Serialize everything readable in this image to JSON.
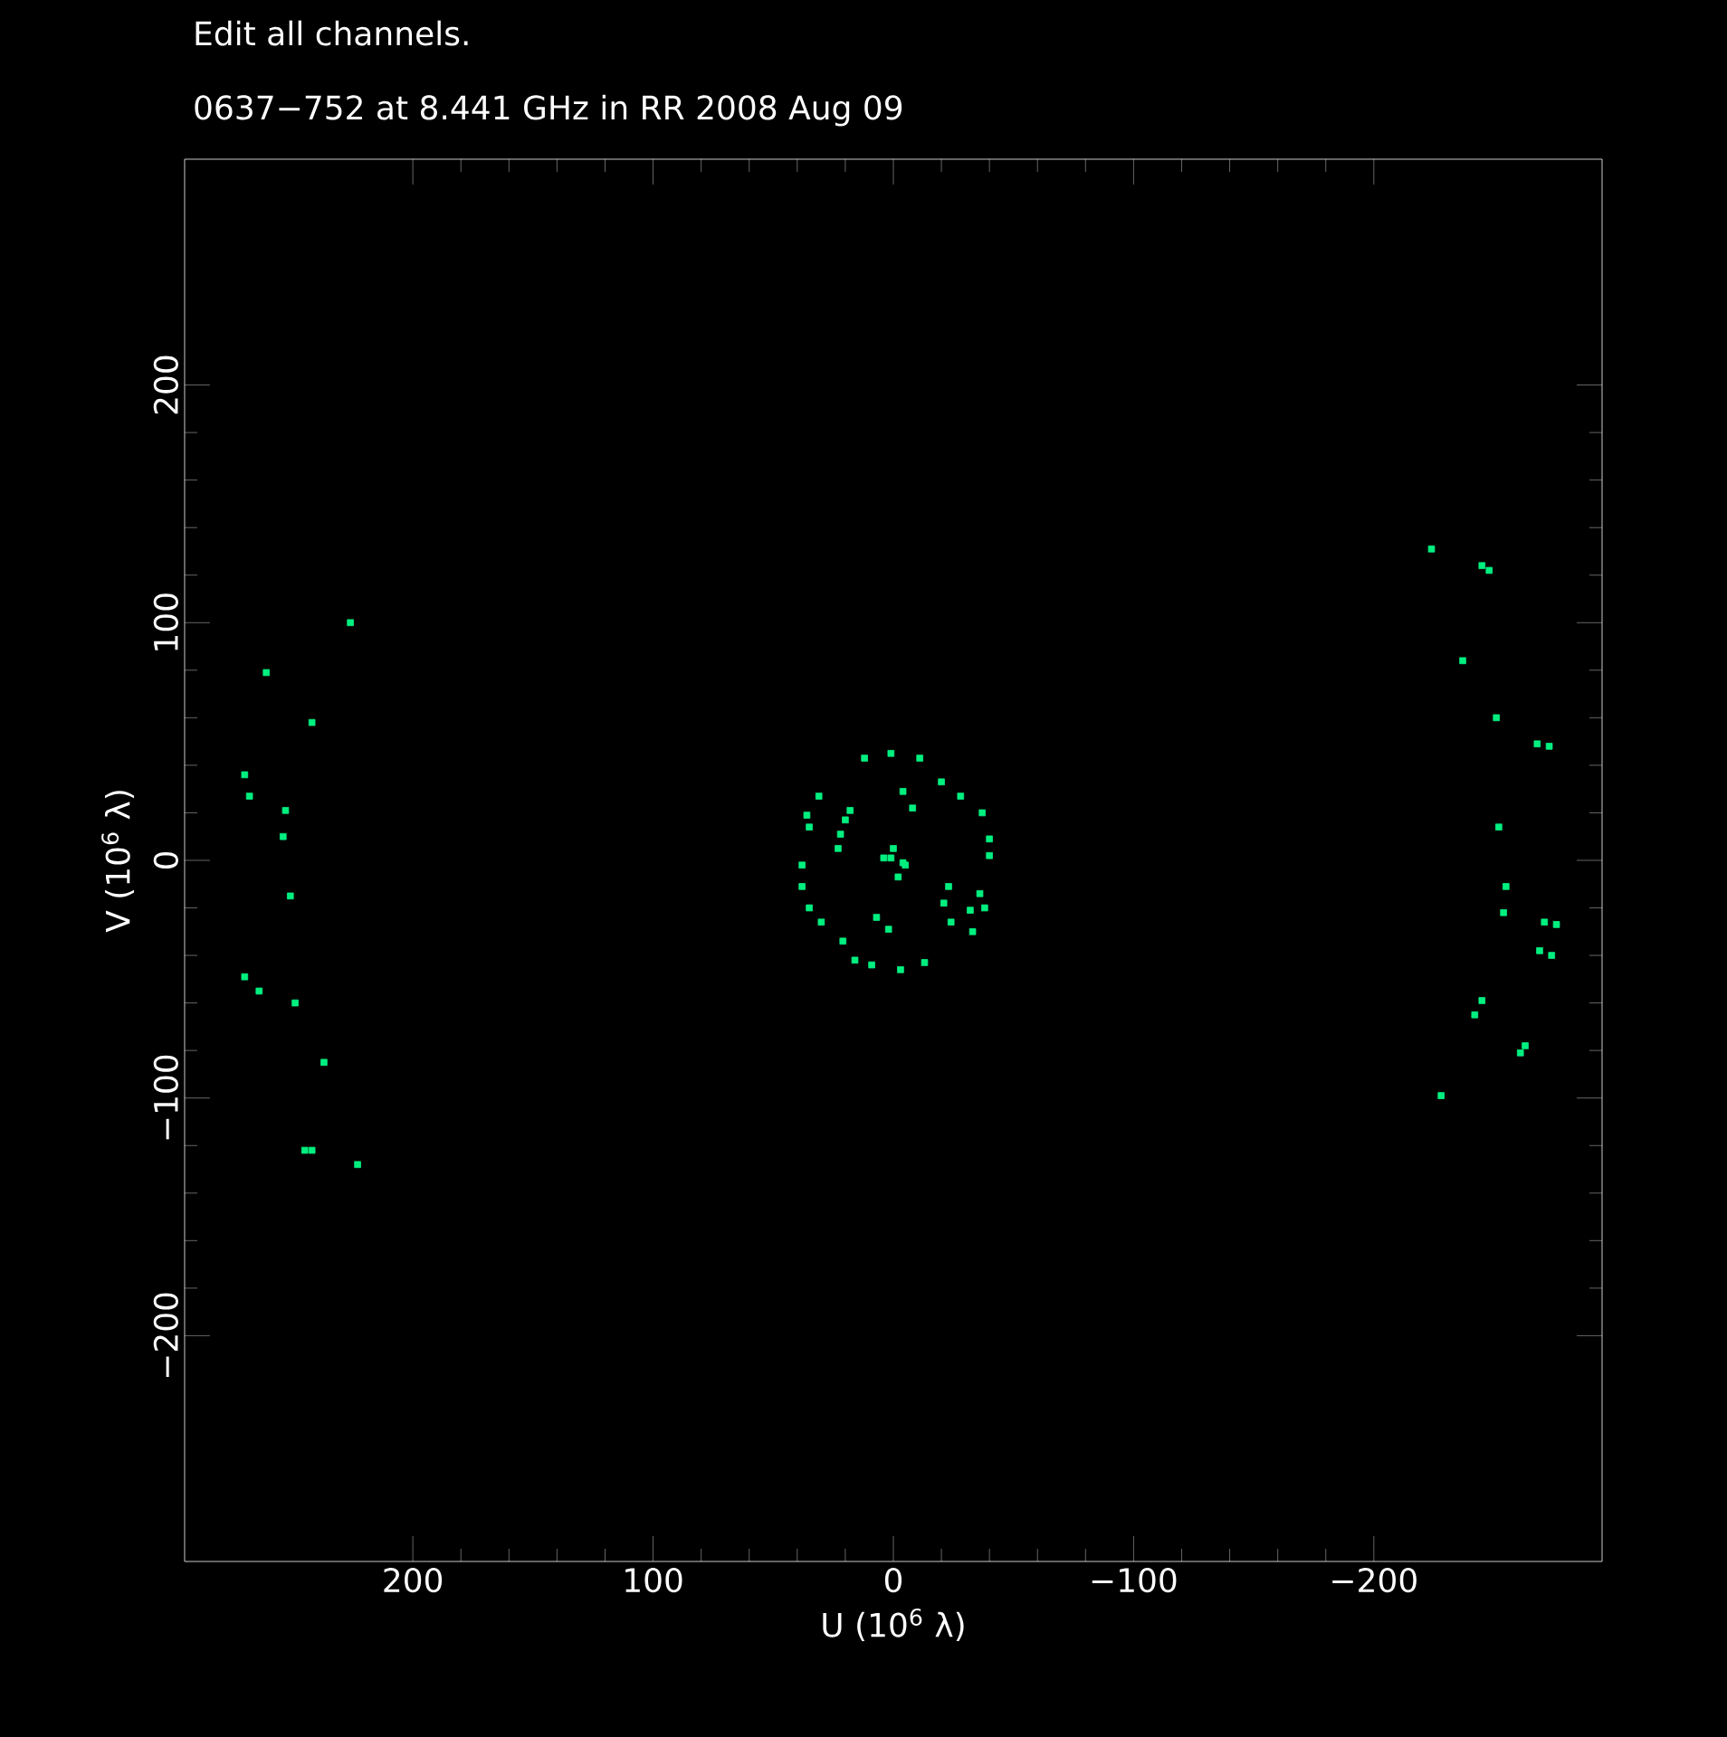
{
  "chart_data": {
    "type": "scatter",
    "subtitle": "Edit all channels.",
    "title": "0637−752 at 8.441 GHz in RR  2008 Aug 09",
    "xlabel": "U (10$^{6}$ λ)",
    "ylabel": "V (10$^{6}$ λ)",
    "xlim": [
      295,
      -295
    ],
    "ylim": [
      -295,
      295
    ],
    "xticks": [
      200,
      100,
      0,
      {
        "value": -100,
        "label": "−100"
      },
      {
        "value": -200,
        "label": "−200"
      }
    ],
    "yticks": [
      {
        "value": -200,
        "label": "−200"
      },
      {
        "value": -100,
        "label": "−100"
      },
      0,
      100,
      200
    ],
    "marker": "square",
    "color": "#00f080",
    "x": [
      226,
      261,
      242,
      270,
      268,
      253,
      254,
      251,
      270,
      264,
      249,
      237,
      245,
      242,
      223,
      -224,
      -245,
      -248,
      -237,
      -251,
      -268,
      -273,
      -252,
      -255,
      -254,
      -271,
      -276,
      -269,
      -274,
      -245,
      -242,
      -263,
      -261,
      -228,
      12,
      1,
      -11,
      -4,
      -8,
      -20,
      -28,
      -37,
      -40,
      -40,
      -36,
      -38,
      -33,
      -24,
      -23,
      -21,
      -32,
      -13,
      -3,
      9,
      16,
      2,
      7,
      21,
      30,
      35,
      38,
      38,
      35,
      36,
      31,
      18,
      20,
      22,
      23,
      1,
      -4,
      4,
      0,
      -2,
      -5
    ],
    "values": [
      100,
      79,
      58,
      36,
      27,
      21,
      10,
      -15,
      -49,
      -55,
      -60,
      -85,
      -122,
      -122,
      -128,
      131,
      124,
      122,
      84,
      60,
      49,
      48,
      14,
      -11,
      -22,
      -26,
      -27,
      -38,
      -40,
      -59,
      -65,
      -78,
      -81,
      -99,
      43,
      45,
      43,
      29,
      22,
      33,
      27,
      20,
      9,
      2,
      -14,
      -20,
      -30,
      -26,
      -11,
      -18,
      -21,
      -43,
      -46,
      -44,
      -42,
      -29,
      -24,
      -34,
      -26,
      -20,
      -11,
      -2,
      14,
      19,
      27,
      21,
      17,
      11,
      5,
      1,
      -1,
      1,
      5,
      -7,
      -2
    ]
  }
}
